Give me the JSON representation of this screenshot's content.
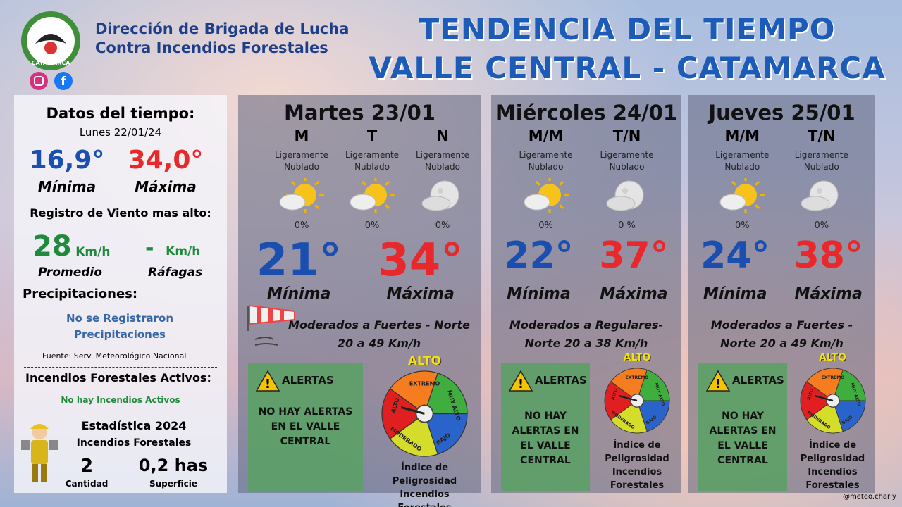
{
  "header": {
    "org_line1": "Dirección de Brigada de Lucha",
    "org_line2": "Contra Incendios Forestales",
    "logo_text": "CATAMARCA",
    "title_line1": "TENDENCIA DEL TIEMPO",
    "title_line2": "VALLE CENTRAL - CATAMARCA"
  },
  "summary": {
    "title": "Datos del tiempo:",
    "date": "Lunes 22/01/24",
    "min": "16,9°",
    "min_label": "Mínima",
    "max": "34,0°",
    "max_label": "Máxima",
    "wind_title": "Registro de Viento mas alto:",
    "wind_avg": "28",
    "wind_avg_unit": "Km/h",
    "wind_avg_label": "Promedio",
    "gust": "-",
    "gust_unit": "Km/h",
    "gust_label": "Ráfagas",
    "precip_title": "Precipitaciones:",
    "precip_text": "No se Registraron Precipitaciones",
    "source": "Fuente: Serv. Meteorológico Nacional",
    "fires_title": "Incendios Forestales Activos:",
    "fires_text": "No hay Incendios Activos",
    "stats_title": "Estadística 2024",
    "stats_subtitle": "Incendios Forestales",
    "count": "2",
    "count_label": "Cantidad",
    "area": "0,2 has",
    "area_label": "Superficie"
  },
  "days": [
    {
      "day": "Martes 23/01",
      "periods": [
        {
          "label": "M",
          "condition": "Ligeramente Nublado",
          "precip": "0%"
        },
        {
          "label": "T",
          "condition": "Ligeramente Nublado",
          "precip": "0%"
        },
        {
          "label": "N",
          "condition": "Ligeramente Nublado",
          "precip": "0%"
        }
      ],
      "min": "21°",
      "min_label": "Mínima",
      "max": "34°",
      "max_label": "Máxima",
      "wind": "Moderados a Fuertes - Norte 20 a 49 Km/h",
      "alert_title": "ALERTAS",
      "alert_text": "NO HAY ALERTAS EN EL VALLE CENTRAL",
      "gauge_level": "ALTO",
      "gauge_segments": [
        "EXTREMO",
        "MUY ALTO",
        "BAJO",
        "MODERADO",
        "ALTO"
      ],
      "index_label": "Índice de Peligrosidad Incendios Forestales"
    },
    {
      "day": "Miércoles 24/01",
      "periods": [
        {
          "label": "M/M",
          "condition": "Ligeramente Nublado",
          "precip": "0%"
        },
        {
          "label": "T/N",
          "condition": "Ligeramente Nublado",
          "precip": "0 %"
        }
      ],
      "min": "22°",
      "min_label": "Mínima",
      "max": "37°",
      "max_label": "Máxima",
      "wind": "Moderados a Regulares- Norte 20 a 38 Km/h",
      "alert_title": "ALERTAS",
      "alert_text": "NO HAY ALERTAS EN EL VALLE CENTRAL",
      "gauge_level": "ALTO",
      "gauge_segments": [
        "EXTREMO",
        "MUY ALTO",
        "BAJO",
        "MODERADO",
        "ALTO"
      ],
      "index_label": "Índice de Peligrosidad Incendios Forestales"
    },
    {
      "day": "Jueves 25/01",
      "periods": [
        {
          "label": "M/M",
          "condition": "Ligeramente Nublado",
          "precip": "0%"
        },
        {
          "label": "T/N",
          "condition": "Ligeramente Nublado",
          "precip": "0%"
        }
      ],
      "min": "24°",
      "min_label": "Mínima",
      "max": "38°",
      "max_label": "Máxima",
      "wind": "Moderados a Fuertes - Norte 20 a 49 Km/h",
      "alert_title": "ALERTAS",
      "alert_text": "NO HAY ALERTAS EN EL VALLE CENTRAL",
      "gauge_level": "ALTO",
      "gauge_segments": [
        "EXTREMO",
        "MUY ALTO",
        "BAJO",
        "MODERADO",
        "ALTO"
      ],
      "index_label": "Índice de Peligrosidad Incendios Forestales"
    }
  ],
  "footer": {
    "credit": "@meteo.charly"
  }
}
